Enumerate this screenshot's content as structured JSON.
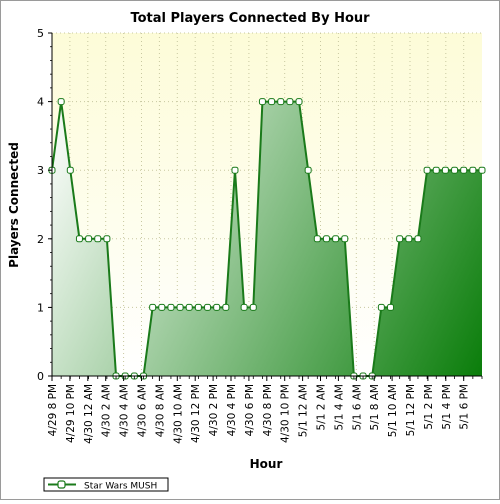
{
  "chart_data": {
    "type": "area",
    "title": "Total Players Connected By Hour",
    "xlabel": "Hour",
    "ylabel": "Players Connected",
    "ylim": [
      0,
      5
    ],
    "yticks": [
      0,
      1,
      2,
      3,
      4,
      5
    ],
    "grid": true,
    "legend_position": "bottom-left",
    "x_tick_labels": [
      "4/29 8 PM",
      "4/29 10 PM",
      "4/30 12 AM",
      "4/30 2 AM",
      "4/30 4 AM",
      "4/30 6 AM",
      "4/30 8 AM",
      "4/30 10 AM",
      "4/30 12 PM",
      "4/30 2 PM",
      "4/30 4 PM",
      "4/30 6 PM",
      "4/30 8 PM",
      "4/30 10 PM",
      "5/1 12 AM",
      "5/1 2 AM",
      "5/1 4 AM",
      "5/1 6 AM",
      "5/1 8 AM",
      "5/1 10 AM",
      "5/1 12 PM",
      "5/1 2 PM",
      "5/1 4 PM",
      "5/1 6 PM"
    ],
    "series": [
      {
        "name": "Star Wars MUSH",
        "values": [
          3,
          4,
          3,
          2,
          2,
          2,
          2,
          0,
          0,
          0,
          0,
          1,
          1,
          1,
          1,
          1,
          1,
          1,
          1,
          1,
          3,
          1,
          1,
          4,
          4,
          4,
          4,
          4,
          3,
          2,
          2,
          2,
          2,
          0,
          0,
          0,
          1,
          1,
          2,
          2,
          2,
          3,
          3,
          3,
          3,
          3,
          3,
          3
        ]
      }
    ],
    "colors": {
      "line": "#1a7a1a",
      "fill_light": "#f2f8f2",
      "fill_dark": "#0a7d0a",
      "plot_bg_top": "#fdfcd8",
      "plot_bg_bottom": "#ffffff",
      "grid": "#c8c8a0",
      "marker_fill": "#ffffff"
    }
  }
}
